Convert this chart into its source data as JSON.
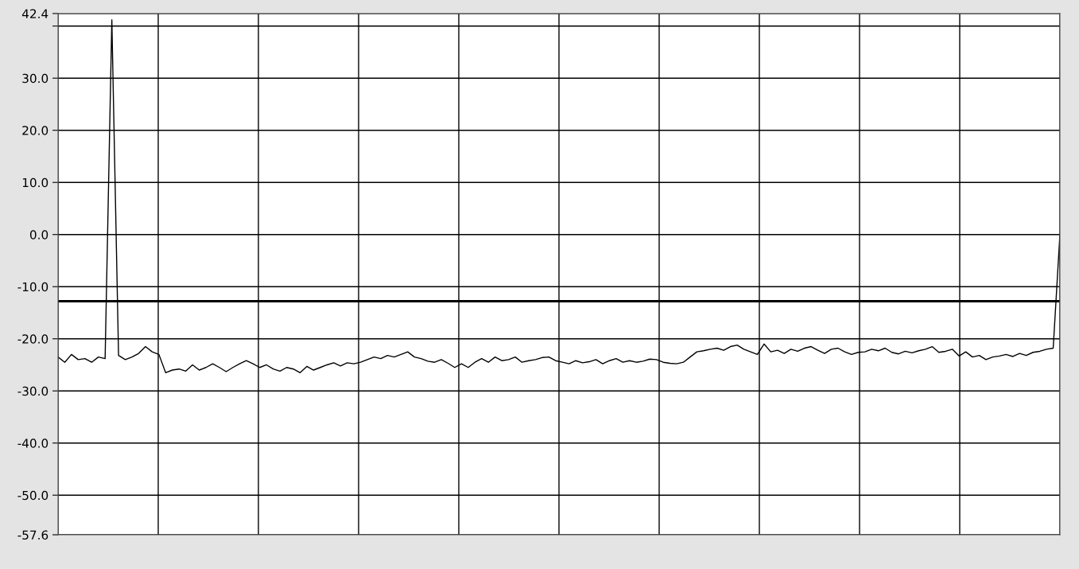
{
  "chart_data": {
    "type": "line",
    "categories": [
      null,
      null,
      null,
      null,
      null,
      null,
      null,
      null,
      null,
      null,
      null,
      null,
      null,
      null,
      null,
      null,
      null,
      null,
      null,
      null,
      null,
      null,
      null,
      null,
      null,
      null,
      null,
      null,
      null,
      null,
      null,
      null,
      null,
      null,
      null,
      null,
      null,
      null,
      null,
      null,
      null,
      null,
      null,
      null,
      null,
      null,
      null,
      null,
      null,
      null,
      null,
      null,
      null,
      null,
      null,
      null,
      null,
      null,
      null,
      null,
      null,
      null,
      null,
      null,
      null,
      null,
      null,
      null,
      null,
      null,
      null,
      null,
      null,
      null,
      null,
      null,
      null,
      null,
      null,
      null,
      null,
      null,
      null,
      null,
      null,
      null,
      null,
      null,
      null,
      null,
      null,
      null,
      null,
      null,
      null,
      null,
      null,
      null,
      null,
      null,
      null,
      null,
      null,
      null,
      null,
      null,
      null,
      null,
      null,
      null,
      null,
      null,
      null,
      null,
      null,
      null,
      null,
      null,
      null,
      null,
      null,
      null,
      null,
      null,
      null,
      null,
      null,
      null,
      null,
      null,
      null,
      null,
      null,
      null,
      null,
      null,
      null,
      null,
      null,
      null,
      null,
      null,
      null,
      null,
      null,
      null,
      null,
      null,
      null,
      null
    ],
    "series": [
      {
        "color": "#000000",
        "values": [
          -23.5,
          -24.5,
          -23,
          -24,
          -23.8,
          -24.5,
          -23.5,
          -23.8,
          41.2,
          -23.2,
          -24,
          -23.5,
          -22.8,
          -21.5,
          -22.5,
          -23,
          -26.5,
          -26,
          -25.8,
          -26.2,
          -25,
          -26,
          -25.5,
          -24.8,
          -25.5,
          -26.3,
          -25.5,
          -24.8,
          -24.2,
          -24.8,
          -25.5,
          -25,
          -25.8,
          -26.2,
          -25.5,
          -25.8,
          -26.5,
          -25.3,
          -26,
          -25.5,
          -25,
          -24.6,
          -25.2,
          -24.6,
          -24.8,
          -24.5,
          -24,
          -23.5,
          -23.8,
          -23.2,
          -23.5,
          -23,
          -22.5,
          -23.5,
          -23.8,
          -24.3,
          -24.5,
          -24,
          -24.7,
          -25.5,
          -24.8,
          -25.5,
          -24.5,
          -23.8,
          -24.5,
          -23.5,
          -24.2,
          -24,
          -23.5,
          -24.5,
          -24.2,
          -24,
          -23.6,
          -23.5,
          -24.2,
          -24.5,
          -24.8,
          -24.2,
          -24.6,
          -24.4,
          -24,
          -24.8,
          -24.2,
          -23.8,
          -24.5,
          -24.2,
          -24.5,
          -24.3,
          -23.9,
          -24,
          -24.5,
          -24.7,
          -24.8,
          -24.5,
          -23.5,
          -22.5,
          -22.3,
          -22,
          -21.8,
          -22.2,
          -21.5,
          -21.2,
          -22,
          -22.5,
          -23,
          -21,
          -22.5,
          -22.2,
          -22.8,
          -22,
          -22.4,
          -21.8,
          -21.5,
          -22.2,
          -22.8,
          -22,
          -21.8,
          -22.5,
          -23,
          -22.6,
          -22.5,
          -22,
          -22.3,
          -21.8,
          -22.6,
          -22.9,
          -22.4,
          -22.7,
          -22.3,
          -22,
          -21.5,
          -22.6,
          -22.4,
          -22,
          -23.3,
          -22.5,
          -23.5,
          -23.2,
          -24,
          -23.5,
          -23.3,
          -23,
          -23.4,
          -22.8,
          -23.2,
          -22.6,
          -22.4,
          -22,
          -21.8,
          0
        ]
      }
    ],
    "ylim": [
      -57.6,
      42.4
    ],
    "yticks": [
      42.4,
      {
        "value": 40,
        "label": null
      },
      {
        "value": 30,
        "label": "30.0"
      },
      {
        "value": 20,
        "label": "20.0"
      },
      {
        "value": 10,
        "label": "10.0"
      },
      {
        "value": 0,
        "label": "0.0"
      },
      {
        "value": -10,
        "label": "-10.0"
      },
      {
        "value": -20,
        "label": "-20.0"
      },
      {
        "value": -30,
        "label": "-30.0"
      },
      {
        "value": -40,
        "label": "-40.0"
      },
      {
        "value": -50,
        "label": "-50.0"
      },
      -57.6
    ],
    "ref_lines": [
      {
        "axis": "y",
        "value": -12.8,
        "color": "#000000",
        "line_style": "solid"
      }
    ],
    "grid": true,
    "tick_labels": "y",
    "marker": "none",
    "line_style": "solid"
  }
}
